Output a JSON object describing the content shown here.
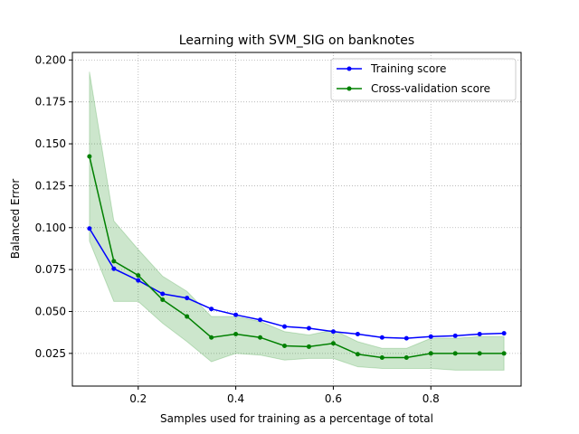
{
  "chart_data": {
    "type": "line",
    "title": "Learning with SVM_SIG on banknotes",
    "xlabel": "Samples used for training as a percentage of total",
    "ylabel": "Balanced Error",
    "xlim": [
      0.065,
      0.985
    ],
    "ylim": [
      0.0055,
      0.2045
    ],
    "x_ticks": [
      0.2,
      0.4,
      0.6,
      0.8
    ],
    "x_tick_labels": [
      "0.2",
      "0.4",
      "0.6",
      "0.8"
    ],
    "y_ticks": [
      0.025,
      0.05,
      0.075,
      0.1,
      0.125,
      0.15,
      0.175,
      0.2
    ],
    "y_tick_labels": [
      "0.025",
      "0.050",
      "0.075",
      "0.100",
      "0.125",
      "0.150",
      "0.175",
      "0.200"
    ],
    "grid": true,
    "legend_position": "top-right",
    "x": [
      0.1,
      0.15,
      0.2,
      0.25,
      0.3,
      0.35,
      0.4,
      0.45,
      0.5,
      0.55,
      0.6,
      0.65,
      0.7,
      0.75,
      0.8,
      0.85,
      0.9,
      0.95
    ],
    "series": [
      {
        "name": "Training score",
        "color": "#0000ff",
        "values": [
          0.0995,
          0.0755,
          0.0685,
          0.0605,
          0.058,
          0.0515,
          0.048,
          0.045,
          0.041,
          0.04,
          0.038,
          0.0365,
          0.0345,
          0.034,
          0.035,
          0.0355,
          0.0365,
          0.037
        ]
      },
      {
        "name": "Cross-validation score",
        "color": "#008000",
        "values": [
          0.1425,
          0.08,
          0.0715,
          0.057,
          0.047,
          0.0345,
          0.0365,
          0.0345,
          0.0295,
          0.029,
          0.031,
          0.0245,
          0.0225,
          0.0225,
          0.025,
          0.025,
          0.025,
          0.025
        ],
        "band_upper": [
          0.193,
          0.104,
          0.087,
          0.071,
          0.062,
          0.047,
          0.047,
          0.044,
          0.038,
          0.036,
          0.039,
          0.032,
          0.028,
          0.028,
          0.034,
          0.034,
          0.035,
          0.035
        ],
        "band_lower": [
          0.092,
          0.056,
          0.056,
          0.043,
          0.032,
          0.02,
          0.025,
          0.024,
          0.021,
          0.022,
          0.022,
          0.017,
          0.016,
          0.016,
          0.016,
          0.015,
          0.015,
          0.015
        ],
        "band_color": "#008000"
      }
    ]
  }
}
